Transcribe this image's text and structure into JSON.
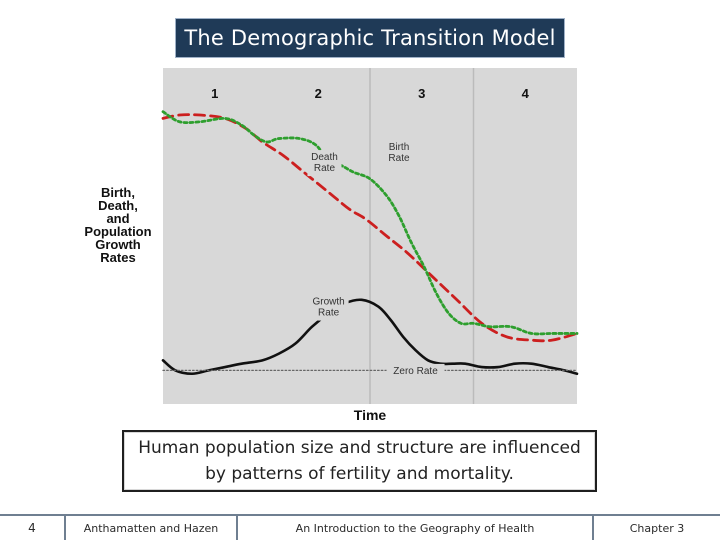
{
  "slide": {
    "title": "The Demographic Transition Model",
    "caption": "Human population size and structure are influenced by patterns of fertility and mortality.",
    "footer": {
      "page_number": "4",
      "authors": "Anthamatten and Hazen",
      "book_title": "An Introduction to the Geography of Health",
      "chapter": "Chapter 3"
    }
  },
  "chart_data": {
    "type": "line",
    "title": "",
    "xlabel": "Time",
    "ylabel": "Birth,\nDeath,\nand\nPopulation\nGrowth\nRates",
    "stages": [
      "1",
      "2",
      "3",
      "4"
    ],
    "xlim": [
      0,
      100
    ],
    "ylim": [
      0,
      100
    ],
    "grid": false,
    "colors": {
      "plot_background": "#d8d8d8",
      "stage_divider": "#bbbbbb",
      "death_rate": "#cc1f1f",
      "birth_rate": "#2e9f2e",
      "growth_rate": "#111111",
      "zero_rate": "#666666"
    },
    "annotations": [
      {
        "text": "Birth\nRate",
        "series": "birth_rate"
      },
      {
        "text": "Death\nRate",
        "series": "death_rate"
      },
      {
        "text": "Growth\nRate",
        "series": "growth_rate"
      },
      {
        "text": "Zero Rate",
        "series": "zero_rate"
      }
    ],
    "series": [
      {
        "key": "death_rate",
        "style": "dashed",
        "x": [
          0,
          4,
          9,
          15,
          20,
          24,
          29,
          34,
          40,
          45,
          49,
          54,
          59,
          65,
          71,
          77,
          83,
          89,
          94,
          100
        ],
        "y": [
          85,
          86,
          86,
          85,
          82,
          78,
          74,
          69,
          63,
          58,
          55,
          50,
          45,
          38,
          31,
          24,
          20,
          19,
          19,
          21
        ]
      },
      {
        "key": "birth_rate",
        "style": "dotted",
        "x": [
          0,
          4,
          9,
          15,
          19,
          22,
          25,
          28,
          33,
          37,
          40,
          43,
          46,
          50,
          54,
          57,
          60,
          63,
          66,
          69,
          72,
          75,
          79,
          84,
          89,
          94,
          100
        ],
        "y": [
          87,
          84,
          84,
          85,
          83,
          80,
          78,
          79,
          79,
          77,
          72,
          71,
          69,
          67,
          62,
          56,
          48,
          41,
          33,
          27,
          24,
          24,
          23,
          23,
          21,
          21,
          21
        ]
      },
      {
        "key": "growth_rate",
        "style": "solid",
        "x": [
          0,
          3,
          7,
          11,
          15,
          19,
          24,
          28,
          32,
          36,
          40,
          44,
          48,
          52,
          55,
          58,
          61,
          64,
          67,
          70,
          73,
          77,
          81,
          85,
          89,
          93,
          97,
          100
        ],
        "y": [
          13,
          10,
          9,
          10,
          11,
          12,
          13,
          15,
          18,
          23,
          27,
          30,
          31,
          29,
          25,
          20,
          16,
          13,
          12,
          12,
          12,
          11,
          11,
          12,
          12,
          11,
          10,
          9
        ]
      },
      {
        "key": "zero_rate",
        "style": "dotted",
        "x": [
          0,
          100
        ],
        "y": [
          10,
          10
        ]
      }
    ]
  }
}
